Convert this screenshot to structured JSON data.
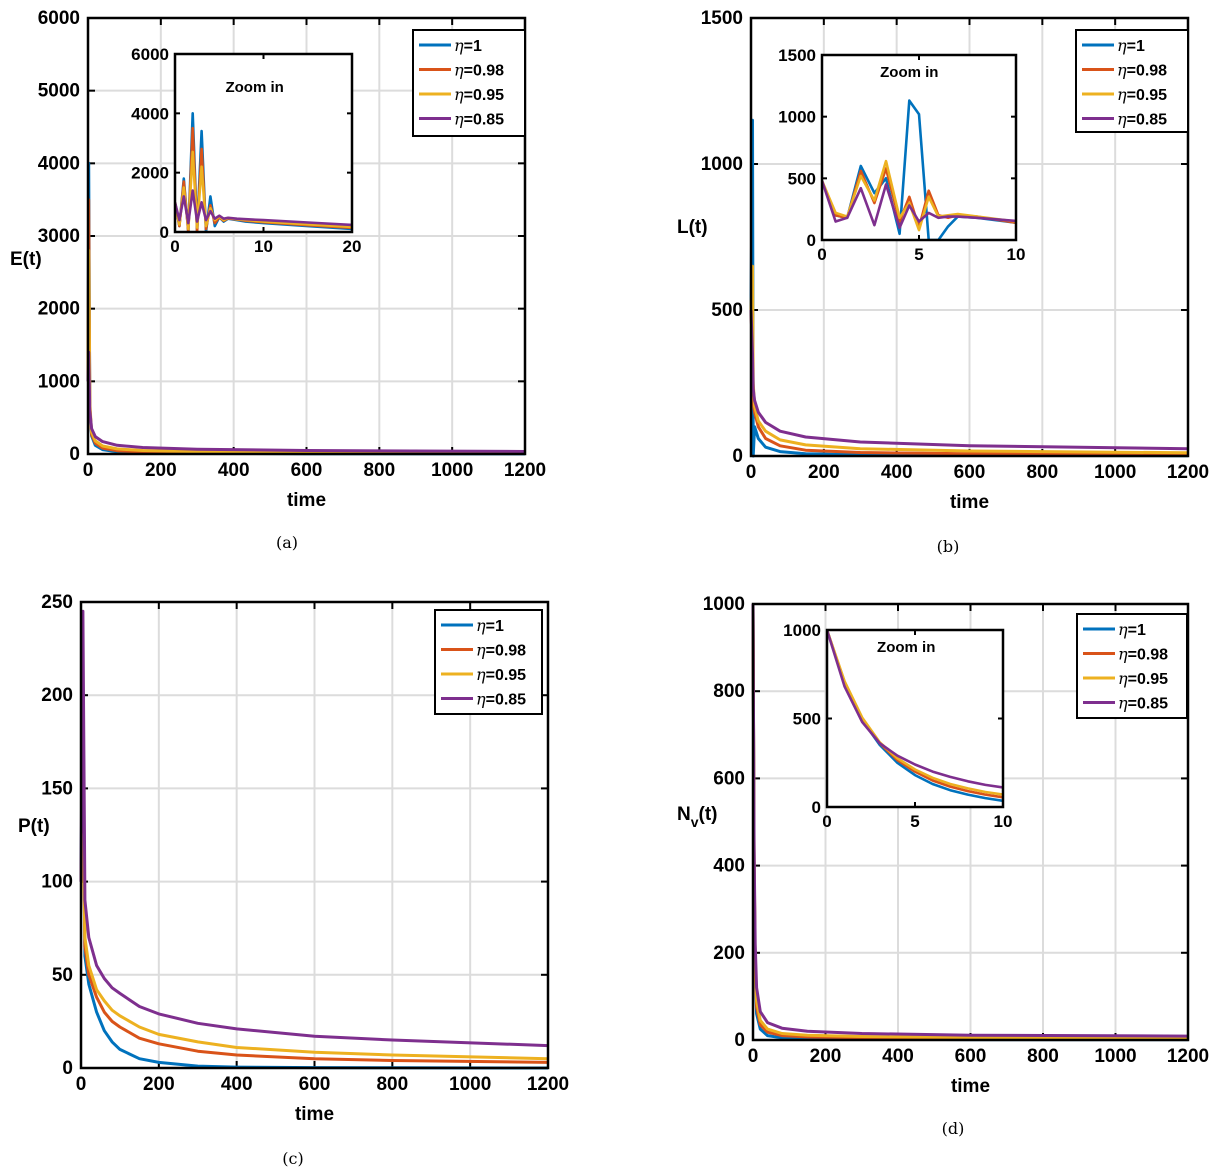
{
  "legend_symbol": "η",
  "series_colors": [
    "#0072bd",
    "#d95319",
    "#edb120",
    "#7e2f8e"
  ],
  "chart_data": [
    {
      "type": "line",
      "caption": "(a)",
      "xlabel": "time",
      "ylabel": "E(t)",
      "xlim": [
        0,
        1200
      ],
      "ylim": [
        0,
        6000
      ],
      "xticks": [
        0,
        200,
        400,
        600,
        800,
        1000,
        1200
      ],
      "yticks": [
        0,
        1000,
        2000,
        3000,
        4000,
        5000,
        6000
      ],
      "grid": true,
      "legend_position": "top-right",
      "series": [
        {
          "name": "=1",
          "x": [
            0,
            2,
            5,
            10,
            20,
            40,
            80,
            150,
            300,
            600,
            1200
          ],
          "y": [
            1000,
            4000,
            600,
            250,
            120,
            60,
            30,
            15,
            8,
            4,
            2
          ]
        },
        {
          "name": "=0.98",
          "x": [
            0,
            2,
            5,
            10,
            20,
            40,
            80,
            150,
            300,
            600,
            1200
          ],
          "y": [
            1000,
            3500,
            650,
            270,
            150,
            80,
            45,
            28,
            18,
            12,
            8
          ]
        },
        {
          "name": "=0.95",
          "x": [
            0,
            2,
            5,
            10,
            20,
            40,
            80,
            150,
            300,
            600,
            1200
          ],
          "y": [
            1000,
            2800,
            700,
            300,
            180,
            110,
            70,
            48,
            33,
            23,
            15
          ]
        },
        {
          "name": "=0.85",
          "x": [
            0,
            2,
            5,
            10,
            20,
            40,
            80,
            150,
            300,
            600,
            1200
          ],
          "y": [
            1000,
            1400,
            600,
            350,
            240,
            170,
            120,
            90,
            65,
            48,
            35
          ]
        }
      ],
      "inset": {
        "title": "Zoom in",
        "xlim": [
          0,
          20
        ],
        "ylim": [
          0,
          6000
        ],
        "xticks": [
          0,
          10,
          20
        ],
        "yticks": [
          0,
          2000,
          4000,
          6000
        ],
        "series": [
          {
            "x": [
              0,
              0.5,
              1,
              1.5,
              2,
              2.5,
              3,
              3.5,
              4,
              4.5,
              5,
              5.5,
              6,
              7,
              8,
              10,
              15,
              20
            ],
            "y": [
              1000,
              200,
              1800,
              0,
              4000,
              0,
              3400,
              0,
              1200,
              200,
              500,
              350,
              450,
              400,
              350,
              300,
              200,
              100
            ]
          },
          {
            "x": [
              0,
              0.5,
              1,
              1.5,
              2,
              2.5,
              3,
              3.5,
              4,
              4.5,
              5,
              5.5,
              6,
              7,
              8,
              10,
              15,
              20
            ],
            "y": [
              1000,
              200,
              1700,
              0,
              3500,
              0,
              2800,
              100,
              900,
              300,
              500,
              380,
              460,
              420,
              380,
              330,
              230,
              140
            ]
          },
          {
            "x": [
              0,
              0.5,
              1,
              1.5,
              2,
              2.5,
              3,
              3.5,
              4,
              4.5,
              5,
              5.5,
              6,
              7,
              8,
              10,
              15,
              20
            ],
            "y": [
              1000,
              250,
              1500,
              100,
              2700,
              150,
              2200,
              200,
              800,
              400,
              520,
              400,
              470,
              430,
              400,
              350,
              260,
              170
            ]
          },
          {
            "x": [
              0,
              0.5,
              1,
              1.5,
              2,
              2.5,
              3,
              3.5,
              4,
              4.5,
              5,
              5.5,
              6,
              7,
              8,
              10,
              15,
              20
            ],
            "y": [
              1000,
              400,
              1200,
              300,
              1400,
              350,
              1000,
              400,
              700,
              450,
              550,
              450,
              480,
              450,
              430,
              400,
              320,
              240
            ]
          }
        ]
      }
    },
    {
      "type": "line",
      "caption": "(b)",
      "xlabel": "time",
      "ylabel": "L(t)",
      "xlim": [
        0,
        1200
      ],
      "ylim": [
        0,
        1500
      ],
      "xticks": [
        0,
        200,
        400,
        600,
        800,
        1000,
        1200
      ],
      "yticks": [
        0,
        500,
        1000,
        1500
      ],
      "grid": true,
      "legend_position": "top-right",
      "series": [
        {
          "name": "=1",
          "x": [
            0,
            4,
            6,
            10,
            20,
            40,
            80,
            150,
            300,
            600,
            1200
          ],
          "y": [
            500,
            1150,
            0,
            100,
            60,
            30,
            15,
            8,
            4,
            2,
            1
          ]
        },
        {
          "name": "=0.98",
          "x": [
            0,
            4,
            6,
            10,
            20,
            40,
            80,
            150,
            300,
            600,
            1200
          ],
          "y": [
            500,
            350,
            180,
            150,
            100,
            60,
            35,
            20,
            12,
            8,
            5
          ]
        },
        {
          "name": "=0.95",
          "x": [
            0,
            4,
            6,
            10,
            20,
            40,
            80,
            150,
            300,
            600,
            1200
          ],
          "y": [
            500,
            650,
            250,
            170,
            120,
            85,
            55,
            38,
            25,
            17,
            11
          ]
        },
        {
          "name": "=0.85",
          "x": [
            0,
            4,
            6,
            10,
            20,
            40,
            80,
            150,
            300,
            600,
            1200
          ],
          "y": [
            500,
            350,
            230,
            190,
            150,
            115,
            85,
            65,
            48,
            35,
            25
          ]
        }
      ],
      "inset": {
        "title": "Zoom in",
        "xlim": [
          0,
          10
        ],
        "ylim": [
          0,
          1500
        ],
        "xticks": [
          0,
          5,
          10
        ],
        "yticks": [
          0,
          500,
          1000,
          1500
        ],
        "series": [
          {
            "x": [
              0,
              0.7,
              1.3,
              2,
              2.7,
              3.3,
              4,
              4.5,
              5,
              5.5,
              6,
              6.5,
              7,
              8,
              10
            ],
            "y": [
              480,
              200,
              180,
              600,
              380,
              500,
              50,
              1130,
              1020,
              0,
              0,
              110,
              190,
              180,
              140
            ]
          },
          {
            "x": [
              0,
              0.7,
              1.3,
              2,
              2.7,
              3.3,
              4,
              4.5,
              5,
              5.5,
              6,
              6.5,
              7,
              8,
              10
            ],
            "y": [
              480,
              200,
              180,
              560,
              300,
              580,
              150,
              350,
              100,
              400,
              200,
              180,
              200,
              190,
              140
            ]
          },
          {
            "x": [
              0,
              0.7,
              1.3,
              2,
              2.7,
              3.3,
              4,
              4.5,
              5,
              5.5,
              6,
              6.5,
              7,
              8,
              10
            ],
            "y": [
              480,
              220,
              190,
              520,
              320,
              640,
              180,
              300,
              80,
              350,
              190,
              200,
              210,
              190,
              150
            ]
          },
          {
            "x": [
              0,
              0.7,
              1.3,
              2,
              2.7,
              3.3,
              4,
              4.5,
              5,
              5.5,
              6,
              6.5,
              7,
              8,
              10
            ],
            "y": [
              480,
              150,
              180,
              420,
              120,
              450,
              100,
              280,
              150,
              220,
              180,
              190,
              190,
              180,
              155
            ]
          }
        ]
      }
    },
    {
      "type": "line",
      "caption": "(c)",
      "xlabel": "time",
      "ylabel": "P(t)",
      "xlim": [
        0,
        1200
      ],
      "ylim": [
        0,
        250
      ],
      "xticks": [
        0,
        200,
        400,
        600,
        800,
        1000,
        1200
      ],
      "yticks": [
        0,
        50,
        100,
        150,
        200,
        250
      ],
      "grid": true,
      "legend_position": "top-right",
      "series": [
        {
          "name": "=1",
          "x": [
            0,
            5,
            10,
            20,
            40,
            60,
            80,
            100,
            150,
            200,
            300,
            400,
            600,
            800,
            1200
          ],
          "y": [
            100,
            215,
            60,
            45,
            30,
            20,
            14,
            10,
            5,
            3,
            1,
            0.5,
            0.2,
            0.1,
            0
          ]
        },
        {
          "name": "=0.98",
          "x": [
            0,
            5,
            10,
            20,
            40,
            60,
            80,
            100,
            150,
            200,
            300,
            400,
            600,
            800,
            1200
          ],
          "y": [
            100,
            155,
            65,
            50,
            38,
            30,
            25,
            22,
            16,
            13,
            9,
            7,
            5,
            4,
            3
          ]
        },
        {
          "name": "=0.95",
          "x": [
            0,
            5,
            10,
            20,
            40,
            60,
            80,
            100,
            150,
            200,
            300,
            400,
            600,
            800,
            1200
          ],
          "y": [
            100,
            125,
            70,
            55,
            42,
            36,
            31,
            28,
            22,
            18,
            14,
            11,
            8.5,
            7,
            5
          ]
        },
        {
          "name": "=0.85",
          "x": [
            0,
            5,
            10,
            20,
            40,
            60,
            80,
            100,
            150,
            200,
            300,
            400,
            600,
            800,
            1200
          ],
          "y": [
            100,
            245,
            90,
            70,
            55,
            48,
            43,
            40,
            33,
            29,
            24,
            21,
            17,
            15,
            12
          ]
        }
      ]
    },
    {
      "type": "line",
      "caption": "(d)",
      "xlabel": "time",
      "ylabel": "N",
      "ylabel_sub": "v",
      "ylabel_suffix": "(t)",
      "xlim": [
        0,
        1200
      ],
      "ylim": [
        0,
        1000
      ],
      "xticks": [
        0,
        200,
        400,
        600,
        800,
        1000,
        1200
      ],
      "yticks": [
        0,
        200,
        400,
        600,
        800,
        1000
      ],
      "grid": true,
      "legend_position": "top-right",
      "series": [
        {
          "name": "=1",
          "x": [
            0,
            3,
            6,
            10,
            20,
            40,
            80,
            150,
            300,
            600,
            1200
          ],
          "y": [
            1000,
            400,
            150,
            60,
            25,
            10,
            5,
            3,
            2,
            1,
            1
          ]
        },
        {
          "name": "=0.98",
          "x": [
            0,
            3,
            6,
            10,
            20,
            40,
            80,
            150,
            300,
            600,
            1200
          ],
          "y": [
            1000,
            410,
            165,
            75,
            35,
            18,
            10,
            7,
            5,
            4,
            3
          ]
        },
        {
          "name": "=0.95",
          "x": [
            0,
            3,
            6,
            10,
            20,
            40,
            80,
            150,
            300,
            600,
            1200
          ],
          "y": [
            1000,
            420,
            180,
            90,
            45,
            25,
            15,
            11,
            8,
            6,
            5
          ]
        },
        {
          "name": "=0.85",
          "x": [
            0,
            3,
            6,
            10,
            20,
            40,
            80,
            150,
            300,
            600,
            1200
          ],
          "y": [
            1000,
            440,
            220,
            120,
            65,
            40,
            27,
            20,
            15,
            11,
            9
          ]
        }
      ],
      "inset": {
        "title": "Zoom in",
        "xlim": [
          0,
          10
        ],
        "ylim": [
          0,
          1000
        ],
        "xticks": [
          0,
          5,
          10
        ],
        "yticks": [
          0,
          500,
          1000
        ],
        "series": [
          {
            "x": [
              0,
              1,
              2,
              3,
              4,
              5,
              6,
              7,
              8,
              9,
              10
            ],
            "y": [
              1000,
              700,
              490,
              350,
              250,
              180,
              130,
              95,
              70,
              50,
              35
            ]
          },
          {
            "x": [
              0,
              1,
              2,
              3,
              4,
              5,
              6,
              7,
              8,
              9,
              10
            ],
            "y": [
              1000,
              705,
              500,
              360,
              265,
              200,
              150,
              115,
              90,
              70,
              55
            ]
          },
          {
            "x": [
              0,
              1,
              2,
              3,
              4,
              5,
              6,
              7,
              8,
              9,
              10
            ],
            "y": [
              1000,
              710,
              505,
              365,
              275,
              212,
              165,
              130,
              105,
              85,
              70
            ]
          },
          {
            "x": [
              0,
              1,
              2,
              3,
              4,
              5,
              6,
              7,
              8,
              9,
              10
            ],
            "y": [
              1000,
              680,
              480,
              360,
              290,
              240,
              200,
              170,
              145,
              125,
              110
            ]
          }
        ]
      }
    }
  ]
}
